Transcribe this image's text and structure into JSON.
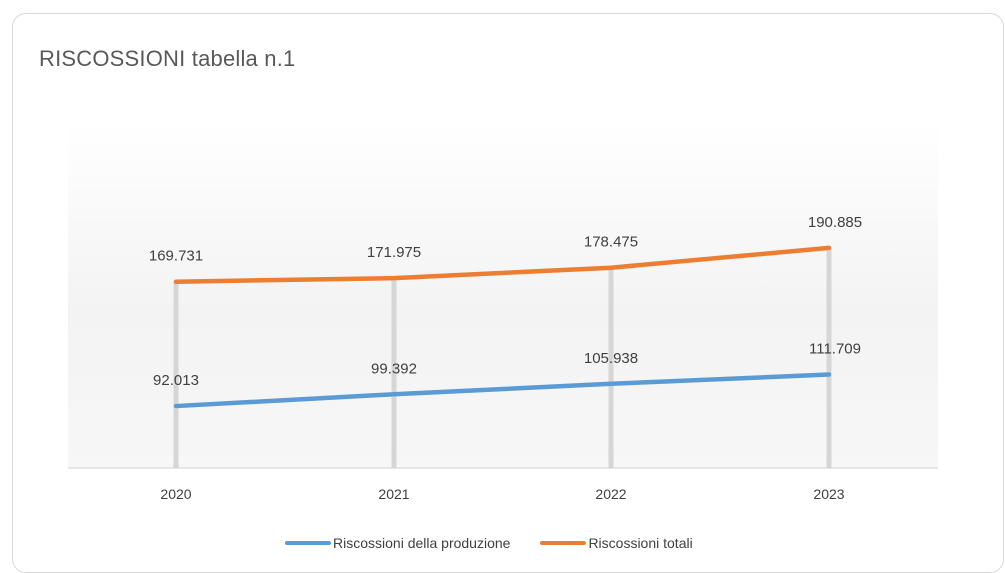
{
  "chart_data": {
    "type": "line",
    "title": "RISCOSSIONI tabella n.1",
    "categories": [
      "2020",
      "2021",
      "2022",
      "2023"
    ],
    "series": [
      {
        "name": "Riscossioni della produzione",
        "color": "#5b9bd5",
        "values": [
          92.013,
          99.392,
          105.938,
          111.709
        ],
        "labels": [
          "92.013",
          "99.392",
          "105.938",
          "111.709"
        ]
      },
      {
        "name": "Riscossioni totali",
        "color": "#ed7d31",
        "values": [
          169.731,
          171.975,
          178.475,
          190.885
        ],
        "labels": [
          "169.731",
          "171.975",
          "178.475",
          "190.885"
        ]
      }
    ],
    "grid": false,
    "drop_lines": true,
    "data_labels": true,
    "legend_position": "bottom"
  }
}
